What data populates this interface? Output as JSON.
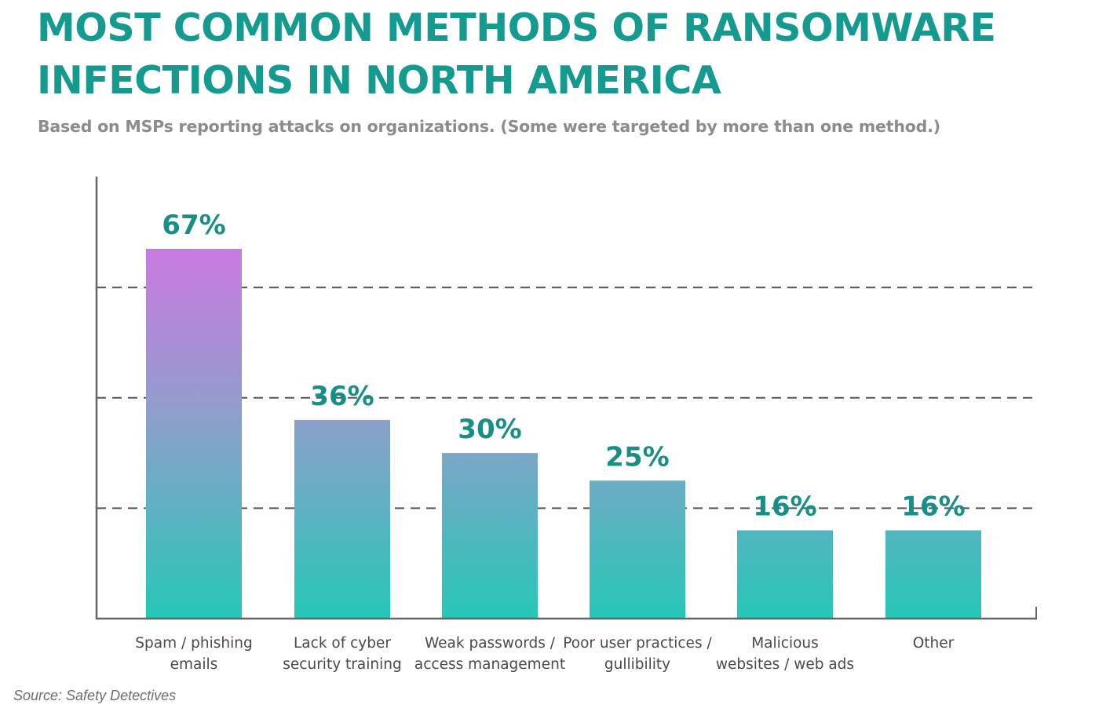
{
  "title": "MOST COMMON METHODS OF RANSOMWARE INFECTIONS IN NORTH AMERICA",
  "subtitle": "Based on MSPs reporting attacks on organizations. (Some were targeted by more than one method.)",
  "source": "Source: Safety Detectives",
  "colors": {
    "title": "#159a8f",
    "subtitle": "#8c8c8c",
    "value_label": "#178f87",
    "axis": "#666666",
    "gridline": "#555555",
    "category_label": "#4a4a4a",
    "bar_gradient_top": "#c97ae0",
    "bar_gradient_bottom": "#26c7b6"
  },
  "chart_data": {
    "type": "bar",
    "title": "MOST COMMON METHODS OF RANSOMWARE INFECTIONS IN NORTH AMERICA",
    "subtitle": "Based on MSPs reporting attacks on organizations. (Some were targeted by more than one method.)",
    "xlabel": "",
    "ylabel": "",
    "ylim": [
      0,
      80
    ],
    "grid": "dashed horizontal",
    "gridlines": [
      20,
      40,
      60
    ],
    "y_tick_labels": false,
    "categories": [
      [
        "Spam / phishing",
        "emails"
      ],
      [
        "Lack of cyber",
        "security training"
      ],
      [
        "Weak passwords /",
        "access management"
      ],
      [
        "Poor user practices /",
        "gullibility"
      ],
      [
        "Malicious",
        "websites / web ads"
      ],
      [
        "Other"
      ]
    ],
    "values": [
      67,
      36,
      30,
      25,
      16,
      16
    ],
    "value_labels": [
      "67%",
      "36%",
      "30%",
      "25%",
      "16%",
      "16%"
    ]
  }
}
